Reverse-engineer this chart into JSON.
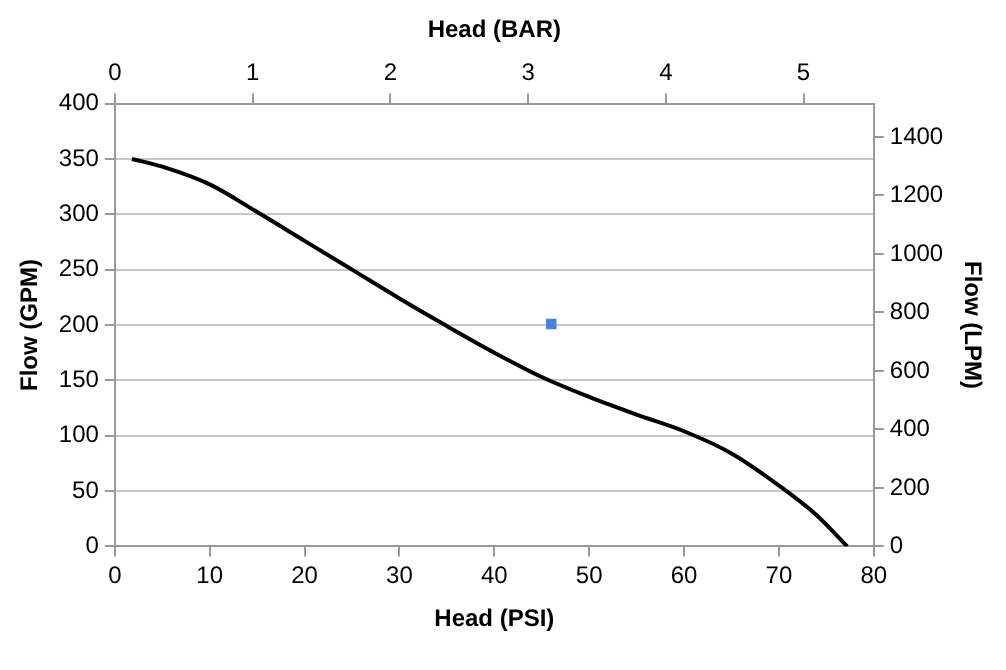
{
  "chart_data": {
    "type": "line",
    "xlabel": "Head (PSI)",
    "ylabel": "Flow (GPM)",
    "x2label": "Head (BAR)",
    "y2label": "Flow (LPM)",
    "xlim": [
      0,
      80
    ],
    "xticks": [
      0,
      10,
      20,
      30,
      40,
      50,
      60,
      70,
      80
    ],
    "ylim": [
      0,
      400
    ],
    "yticks": [
      0,
      50,
      100,
      150,
      200,
      250,
      300,
      350,
      400
    ],
    "x2lim": [
      0,
      5.51
    ],
    "x2ticks": [
      0,
      1,
      2,
      3,
      4,
      5
    ],
    "y2lim": [
      0,
      1514
    ],
    "y2ticks": [
      0,
      200,
      400,
      600,
      800,
      1000,
      1200,
      1400
    ],
    "grid": "y",
    "legend": false,
    "series": [
      {
        "color": "#000000",
        "marker": "none",
        "x": [
          1.8,
          5,
          10,
          15,
          20,
          25,
          30,
          35,
          40,
          45,
          50,
          55,
          60,
          65,
          70,
          74,
          77.2
        ],
        "values": [
          350,
          343,
          327,
          302,
          276,
          250,
          224,
          199,
          175,
          153,
          135,
          119,
          104,
          84,
          55,
          28,
          0
        ]
      },
      {
        "type": "scatter",
        "color": "#4a7fe0",
        "marker": "square",
        "x": [
          46
        ],
        "values": [
          201
        ]
      }
    ]
  }
}
